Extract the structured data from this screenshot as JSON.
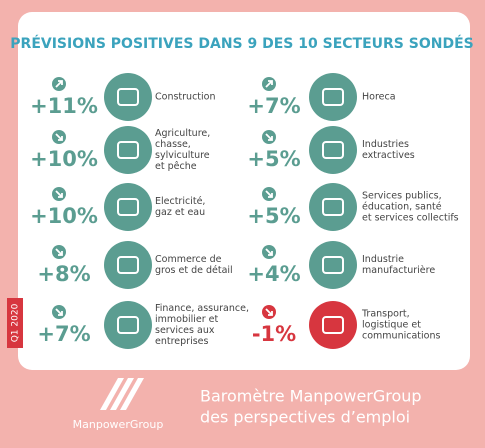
{
  "title": "PRÉVISIONS POSITIVES DANS 9 DES 10 SECTEURS SONDÉS",
  "period": "Q1 2020",
  "sectors": [
    {
      "value": "+11%",
      "direction": "up",
      "color": "#5b9d91",
      "lines": [
        "Construction"
      ]
    },
    {
      "value": "+7%",
      "direction": "up",
      "color": "#5b9d91",
      "lines": [
        "Horeca"
      ]
    },
    {
      "value": "+10%",
      "direction": "down",
      "color": "#5b9d91",
      "lines": [
        "Agriculture,",
        "chasse,",
        "sylviculture",
        "et pêche"
      ]
    },
    {
      "value": "+5%",
      "direction": "down",
      "color": "#5b9d91",
      "lines": [
        "Industries",
        "extractives"
      ]
    },
    {
      "value": "+10%",
      "direction": "down",
      "color": "#5b9d91",
      "lines": [
        "Electricité,",
        "gaz et eau"
      ]
    },
    {
      "value": "+5%",
      "direction": "down",
      "color": "#5b9d91",
      "lines": [
        "Services publics,",
        "éducation, santé",
        "et services collectifs"
      ]
    },
    {
      "value": "+8%",
      "direction": "down",
      "color": "#5b9d91",
      "lines": [
        "Commerce de",
        "gros et de détail"
      ]
    },
    {
      "value": "+4%",
      "direction": "down",
      "color": "#5b9d91",
      "lines": [
        "Industrie",
        "manufacturière"
      ]
    },
    {
      "value": "+7%",
      "direction": "down",
      "color": "#5b9d91",
      "lines": [
        "Finance, assurance,",
        "immobilier et",
        "services aux",
        "entreprises"
      ]
    },
    {
      "value": "-1%",
      "direction": "down",
      "color": "#d7363f",
      "lines": [
        "Transport,",
        "logistique et",
        "communications"
      ]
    }
  ],
  "footer": {
    "brand": "ManpowerGroup",
    "lines": [
      "Baromètre ManpowerGroup",
      "des perspectives d’emploi"
    ]
  }
}
